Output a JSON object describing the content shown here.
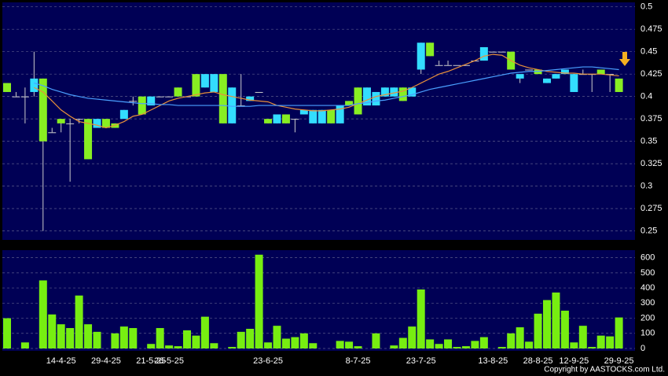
{
  "chart_data": [
    {
      "type": "candlestick",
      "open": [
        0.415,
        0.4,
        0.4,
        0.405,
        0.42,
        0.36,
        0.375,
        0.37,
        0.375,
        0.375,
        0.365,
        0.375,
        0.37,
        0.375,
        0.395,
        0.4,
        0.39,
        0.4,
        0.4,
        0.41,
        0.4,
        0.425,
        0.41,
        0.405,
        0.425,
        0.37,
        0.39,
        0.395,
        0.405,
        0.375,
        0.37,
        0.38,
        0.375,
        0.38,
        0.37,
        0.37,
        0.385,
        0.37,
        0.395,
        0.41,
        0.39,
        0.39,
        0.4,
        0.4,
        0.41,
        0.4,
        0.43,
        0.46,
        0.435,
        0.435,
        0.435,
        0.435,
        0.44,
        0.44,
        0.45,
        0.45,
        0.45,
        0.42,
        0.43,
        0.43,
        0.415,
        0.42,
        0.425,
        0.405,
        0.425,
        0.425,
        0.43,
        0.425,
        0.42
      ],
      "high": [
        0.415,
        0.405,
        0.41,
        0.45,
        0.42,
        0.365,
        0.375,
        0.375,
        0.375,
        0.375,
        0.375,
        0.375,
        0.37,
        0.385,
        0.4,
        0.4,
        0.4,
        0.4,
        0.4,
        0.41,
        0.4,
        0.425,
        0.425,
        0.425,
        0.425,
        0.41,
        0.425,
        0.4,
        0.405,
        0.375,
        0.38,
        0.38,
        0.375,
        0.385,
        0.385,
        0.385,
        0.385,
        0.39,
        0.395,
        0.41,
        0.41,
        0.405,
        0.41,
        0.41,
        0.41,
        0.41,
        0.46,
        0.46,
        0.44,
        0.44,
        0.435,
        0.435,
        0.44,
        0.455,
        0.45,
        0.45,
        0.45,
        0.425,
        0.43,
        0.43,
        0.42,
        0.425,
        0.43,
        0.425,
        0.43,
        0.425,
        0.43,
        0.425,
        0.42
      ],
      "low": [
        0.405,
        0.4,
        0.37,
        0.4,
        0.25,
        0.36,
        0.36,
        0.305,
        0.37,
        0.33,
        0.365,
        0.365,
        0.365,
        0.375,
        0.39,
        0.38,
        0.39,
        0.4,
        0.4,
        0.4,
        0.4,
        0.4,
        0.41,
        0.405,
        0.37,
        0.37,
        0.39,
        0.395,
        0.405,
        0.37,
        0.37,
        0.37,
        0.36,
        0.38,
        0.37,
        0.37,
        0.37,
        0.37,
        0.39,
        0.38,
        0.39,
        0.39,
        0.4,
        0.4,
        0.395,
        0.4,
        0.425,
        0.445,
        0.435,
        0.435,
        0.435,
        0.435,
        0.44,
        0.44,
        0.45,
        0.45,
        0.43,
        0.415,
        0.43,
        0.425,
        0.415,
        0.42,
        0.425,
        0.405,
        0.425,
        0.405,
        0.425,
        0.405,
        0.405
      ],
      "close": [
        0.405,
        0.4,
        0.4,
        0.42,
        0.35,
        0.36,
        0.37,
        0.37,
        0.375,
        0.33,
        0.375,
        0.365,
        0.365,
        0.385,
        0.395,
        0.38,
        0.4,
        0.4,
        0.4,
        0.4,
        0.4,
        0.4,
        0.425,
        0.425,
        0.37,
        0.41,
        0.39,
        0.4,
        0.405,
        0.37,
        0.38,
        0.37,
        0.375,
        0.385,
        0.385,
        0.385,
        0.37,
        0.39,
        0.39,
        0.38,
        0.41,
        0.405,
        0.41,
        0.41,
        0.395,
        0.41,
        0.46,
        0.445,
        0.435,
        0.435,
        0.435,
        0.435,
        0.44,
        0.455,
        0.45,
        0.45,
        0.43,
        0.425,
        0.43,
        0.425,
        0.42,
        0.425,
        0.43,
        0.425,
        0.425,
        0.425,
        0.425,
        0.425,
        0.405
      ],
      "up_color": "#33ddff",
      "down_color": "#88ee22",
      "series": [
        {
          "color": "#e8903a",
          "values": [
            null,
            null,
            null,
            0.41,
            0.405,
            0.395,
            0.385,
            0.378,
            0.372,
            0.37,
            0.368,
            0.365,
            0.368,
            0.372,
            0.378,
            0.38,
            0.385,
            0.39,
            0.395,
            0.398,
            0.4,
            0.402,
            0.404,
            0.405,
            0.402,
            0.4,
            0.398,
            0.396,
            0.395,
            0.394,
            0.39,
            0.388,
            0.386,
            0.385,
            0.384,
            0.384,
            0.385,
            0.386,
            0.388,
            0.392,
            0.396,
            0.4,
            0.402,
            0.404,
            0.406,
            0.41,
            0.415,
            0.42,
            0.425,
            0.428,
            0.432,
            0.436,
            0.44,
            0.445,
            0.447,
            0.446,
            0.44,
            0.435,
            0.432,
            0.43,
            0.428,
            0.427,
            0.426,
            0.426,
            0.425,
            0.425,
            0.425,
            0.424,
            0.423
          ]
        },
        {
          "color": "#4aa0ff",
          "values": [
            null,
            null,
            null,
            0.415,
            0.412,
            0.408,
            0.405,
            0.402,
            0.4,
            0.398,
            0.397,
            0.396,
            0.395,
            0.394,
            0.393,
            0.392,
            0.392,
            0.391,
            0.391,
            0.39,
            0.39,
            0.39,
            0.39,
            0.39,
            0.39,
            0.389,
            0.389,
            0.389,
            0.39,
            0.39,
            0.39,
            0.39,
            0.39,
            0.39,
            0.39,
            0.39,
            0.39,
            0.39,
            0.39,
            0.392,
            0.393,
            0.395,
            0.396,
            0.398,
            0.4,
            0.402,
            0.405,
            0.408,
            0.41,
            0.412,
            0.414,
            0.416,
            0.418,
            0.42,
            0.422,
            0.424,
            0.426,
            0.427,
            0.428,
            0.428,
            0.429,
            0.43,
            0.431,
            0.432,
            0.433,
            0.433,
            0.432,
            0.431,
            0.43
          ]
        }
      ],
      "ylim": [
        0.24,
        0.505
      ],
      "yticks": [
        0.25,
        0.275,
        0.3,
        0.325,
        0.35,
        0.375,
        0.4,
        0.425,
        0.45,
        0.475,
        0.5
      ],
      "grid": true
    },
    {
      "type": "bar",
      "categories": [
        null,
        null,
        null,
        null,
        null,
        null,
        "14-4-25",
        null,
        null,
        null,
        null,
        "29-4-25",
        null,
        null,
        null,
        null,
        "21-5-25",
        null,
        "26-5-25",
        null,
        null,
        null,
        null,
        null,
        null,
        null,
        null,
        null,
        null,
        "23-6-25",
        null,
        null,
        null,
        null,
        null,
        null,
        null,
        null,
        null,
        "8-7-25",
        null,
        null,
        null,
        null,
        null,
        null,
        "23-7-25",
        null,
        null,
        null,
        null,
        null,
        null,
        null,
        "13-8-25",
        null,
        null,
        null,
        null,
        "28-8-25",
        null,
        null,
        null,
        "12-9-25",
        null,
        null,
        null,
        null,
        "29-9-25"
      ],
      "values": [
        200,
        0,
        40,
        0,
        450,
        225,
        160,
        135,
        350,
        160,
        110,
        0,
        100,
        145,
        135,
        0,
        30,
        135,
        20,
        15,
        120,
        85,
        210,
        35,
        0,
        10,
        110,
        130,
        620,
        40,
        150,
        65,
        75,
        100,
        35,
        0,
        0,
        50,
        45,
        15,
        0,
        100,
        0,
        20,
        70,
        145,
        390,
        60,
        30,
        60,
        10,
        15,
        50,
        75,
        0,
        10,
        100,
        140,
        45,
        230,
        320,
        370,
        250,
        40,
        150,
        10,
        85,
        80,
        205
      ],
      "color": "#77ee11",
      "ylim": [
        0,
        650
      ],
      "yticks": [
        0,
        100,
        200,
        300,
        400,
        500,
        600
      ],
      "grid": true
    }
  ],
  "footer": "Copyright by AASTOCKS.com Ltd."
}
